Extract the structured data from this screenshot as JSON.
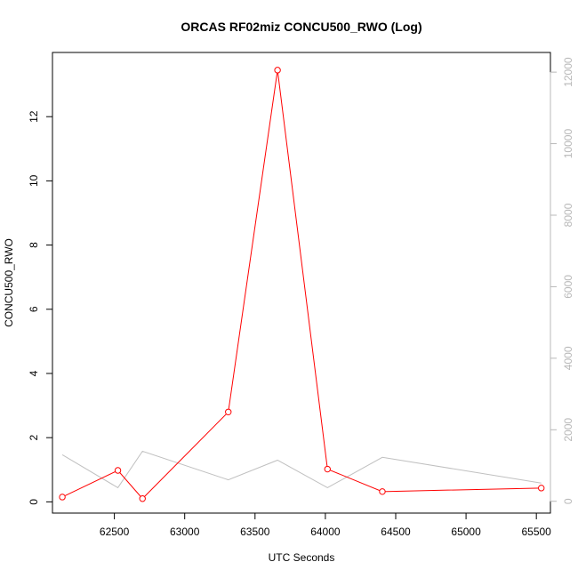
{
  "chart_data": {
    "type": "line",
    "title": "ORCAS RF02miz CONCU500_RWO (Log)",
    "xlabel": "UTC Seconds",
    "ylabel": "CONCU500_RWO",
    "x_ticks": [
      "62500",
      "63000",
      "63500",
      "64000",
      "64500",
      "65000",
      "65500"
    ],
    "y_ticks": [
      "0",
      "2",
      "4",
      "6",
      "8",
      "10",
      "12"
    ],
    "y2_ticks": [
      "0",
      "2000",
      "4000",
      "6000",
      "8000",
      "10000",
      "12000"
    ],
    "xlim": [
      62060,
      65600
    ],
    "ylim": [
      -0.35,
      14.0
    ],
    "y2lim": [
      -330,
      12550
    ],
    "grid": false,
    "colors": {
      "primary": "#ff0000",
      "secondary": "#c0c0c0",
      "axis": "#000000",
      "secondary_axis": "#b8b8b8"
    },
    "series": [
      {
        "axis": "left",
        "x": [
          62130,
          62525,
          62700,
          63310,
          63660,
          64015,
          64405,
          65535
        ],
        "y": [
          0.15,
          0.98,
          0.1,
          2.8,
          13.45,
          1.02,
          0.32,
          0.43
        ]
      },
      {
        "axis": "right",
        "x": [
          62130,
          62525,
          62700,
          63310,
          63660,
          64015,
          64405,
          65535
        ],
        "y": [
          1300,
          380,
          1400,
          600,
          1150,
          380,
          1230,
          510
        ]
      }
    ]
  }
}
